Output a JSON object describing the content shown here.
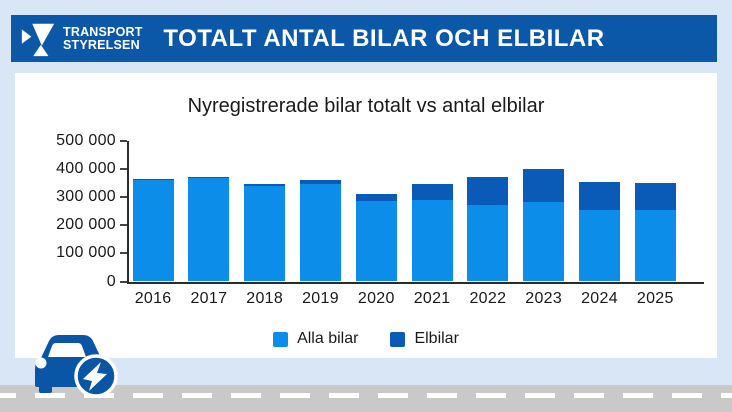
{
  "header": {
    "logo": {
      "line1": "TRANSPORT",
      "line2": "STYRELSEN"
    },
    "title": "TOTALT ANTAL BILAR OCH ELBILAR"
  },
  "chart_data": {
    "type": "bar",
    "stacked": true,
    "title": "Nyregistrerade bilar totalt vs antal elbilar",
    "categories": [
      "2016",
      "2017",
      "2018",
      "2019",
      "2020",
      "2021",
      "2022",
      "2023",
      "2024",
      "2025"
    ],
    "series": [
      {
        "name": "Alla bilar",
        "color": "#0b8de9",
        "values": [
          360000,
          368000,
          340000,
          345000,
          285000,
          288000,
          272000,
          283000,
          253000,
          252000
        ]
      },
      {
        "name": "Elbilar",
        "color": "#0a5bb8",
        "values": [
          3000,
          4000,
          7000,
          16000,
          26000,
          56000,
          98000,
          115000,
          100000,
          99000
        ]
      }
    ],
    "ylim": [
      0,
      500000
    ],
    "y_ticks": [
      {
        "value": 0,
        "label": "0"
      },
      {
        "value": 100000,
        "label": "100 000"
      },
      {
        "value": 200000,
        "label": "200 000"
      },
      {
        "value": 300000,
        "label": "300 000"
      },
      {
        "value": 400000,
        "label": "400 000"
      },
      {
        "value": 500000,
        "label": "500 000"
      }
    ],
    "grid": false,
    "legend_position": "bottom"
  },
  "icons": {
    "header_logo": "transportstyrelsen-logo",
    "footer": "electric-car-with-lightning-badge"
  },
  "colors": {
    "background": "#d9e6f6",
    "header_bar": "#0b57a8",
    "card": "#ffffff",
    "axis": "#2b2b2b",
    "tick": "#444444",
    "text": "#1a1a1a",
    "road": "#c9c9c9",
    "road_dash": "#ffffff",
    "icon_blue": "#0a55a6"
  }
}
